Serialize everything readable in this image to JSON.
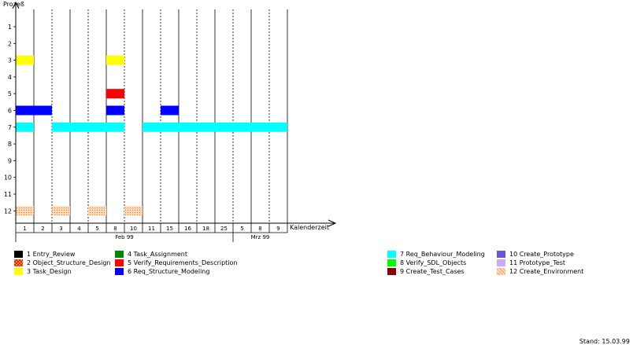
{
  "chart_data": {
    "type": "gantt",
    "y_axis_title": "Prozeß",
    "x_axis_title": "Kalenderzeit",
    "y_ticks": [
      "1",
      "2",
      "3",
      "4",
      "5",
      "6",
      "7",
      "8",
      "9",
      "10",
      "11",
      "12"
    ],
    "x_ticks": [
      "1",
      "2",
      "3",
      "4",
      "5",
      "8",
      "10",
      "11",
      "15",
      "16",
      "18",
      "25",
      "5",
      "8",
      "9"
    ],
    "months": [
      {
        "label": "Feb 99",
        "start": 0,
        "end": 12
      },
      {
        "label": "Mrz 99",
        "start": 12,
        "end": 15
      }
    ],
    "colors": {
      "1": "#000000",
      "2": "#ff6633",
      "3": "#ffff00",
      "4": "#008800",
      "5": "#ff0000",
      "6": "#0000ff",
      "7": "#00ffff",
      "8": "#00ff00",
      "9": "#880000",
      "10": "#6655dd",
      "11": "#ccaaff",
      "12": "#ffcc99"
    },
    "bars": [
      {
        "process": 3,
        "start": 0,
        "end": 1
      },
      {
        "process": 3,
        "start": 5,
        "end": 6
      },
      {
        "process": 5,
        "start": 5,
        "end": 6
      },
      {
        "process": 6,
        "start": 0,
        "end": 2
      },
      {
        "process": 6,
        "start": 5,
        "end": 6
      },
      {
        "process": 6,
        "start": 8,
        "end": 9
      },
      {
        "process": 7,
        "start": 0,
        "end": 1
      },
      {
        "process": 7,
        "start": 2,
        "end": 6
      },
      {
        "process": 7,
        "start": 7,
        "end": 15
      },
      {
        "process": 12,
        "start": 0,
        "end": 1
      },
      {
        "process": 12,
        "start": 2,
        "end": 3
      },
      {
        "process": 12,
        "start": 4,
        "end": 5
      },
      {
        "process": 12,
        "start": 6,
        "end": 7
      }
    ],
    "grid": true
  },
  "legend": [
    {
      "num": "1",
      "name": "Entry_Review",
      "color": "#000000"
    },
    {
      "num": "2",
      "name": "Object_Structure_Design",
      "color": "#ff6633"
    },
    {
      "num": "3",
      "name": "Task_Design",
      "color": "#ffff00"
    },
    {
      "num": "4",
      "name": "Task_Assignment",
      "color": "#008800"
    },
    {
      "num": "5",
      "name": "Verify_Requirements_Description",
      "color": "#ff0000"
    },
    {
      "num": "6",
      "name": "Req_Structure_Modeling",
      "color": "#0000ff"
    },
    {
      "num": "7",
      "name": "Req_Behaviour_Modeling",
      "color": "#00ffff"
    },
    {
      "num": "8",
      "name": "Verify_SDL_Objects",
      "color": "#00ff00"
    },
    {
      "num": "9",
      "name": "Create_Test_Cases",
      "color": "#880000"
    },
    {
      "num": "10",
      "name": "Create_Prototype",
      "color": "#6655dd"
    },
    {
      "num": "11",
      "name": "Prototype_Test",
      "color": "#ccaaff"
    },
    {
      "num": "12",
      "name": "Create_Environment",
      "color": "#ffcc99"
    }
  ],
  "footer": {
    "stand": "Stand: 15.03.99"
  }
}
